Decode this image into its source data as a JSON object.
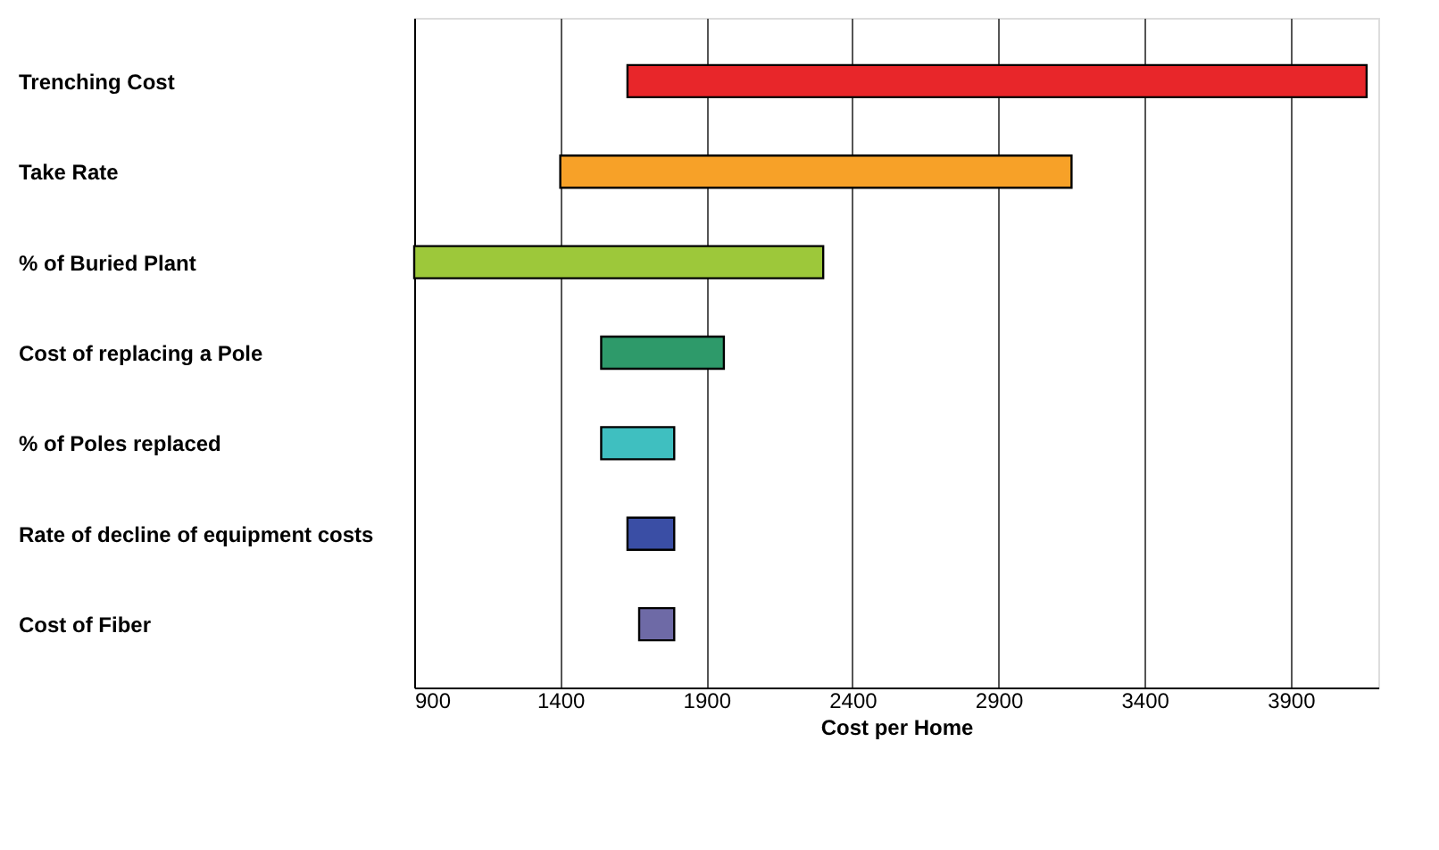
{
  "chart_data": {
    "type": "bar",
    "orientation": "horizontal",
    "xlabel": "Cost per Home",
    "categories": [
      "Trenching Cost",
      "Take Rate",
      "% of Buried Plant",
      "Cost of replacing a Pole",
      "% of Poles replaced",
      "Rate of decline of equipment costs",
      "Cost of Fiber"
    ],
    "base": [
      1630,
      1400,
      900,
      1540,
      1540,
      1630,
      1670
    ],
    "values": [
      2530,
      1750,
      1400,
      420,
      250,
      160,
      120
    ],
    "colors": [
      "#e8262a",
      "#f7a128",
      "#9dc83a",
      "#2e9a6a",
      "#3fbfc0",
      "#3a4ea5",
      "#6e6aa6"
    ],
    "xlim": [
      900,
      4200
    ],
    "xticks": [
      900,
      1400,
      1900,
      2400,
      2900,
      3400,
      3900
    ],
    "grid": "x"
  }
}
